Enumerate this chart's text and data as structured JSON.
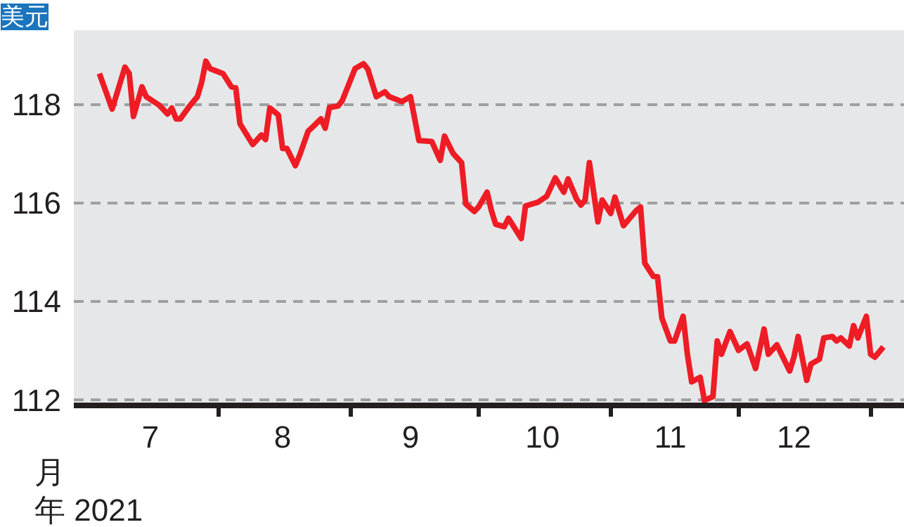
{
  "chart_data": {
    "type": "line",
    "ylabel": "美元",
    "annotations": [
      "月",
      "年 2021"
    ],
    "x": [
      "2021-07-04",
      "2021-07-07",
      "2021-07-10",
      "2021-07-11",
      "2021-07-12",
      "2021-07-14",
      "2021-07-15",
      "2021-07-18",
      "2021-07-20",
      "2021-07-21",
      "2021-07-22",
      "2021-07-23",
      "2021-07-25",
      "2021-07-27",
      "2021-07-28",
      "2021-07-29",
      "2021-07-30",
      "2021-08-02",
      "2021-08-04",
      "2021-08-05",
      "2021-08-06",
      "2021-08-09",
      "2021-08-11",
      "2021-08-12",
      "2021-08-13",
      "2021-08-15",
      "2021-08-16",
      "2021-08-17",
      "2021-08-19",
      "2021-08-20",
      "2021-08-22",
      "2021-08-23",
      "2021-08-25",
      "2021-08-26",
      "2021-08-27",
      "2021-08-29",
      "2021-08-30",
      "2021-09-02",
      "2021-09-04",
      "2021-09-05",
      "2021-09-07",
      "2021-09-09",
      "2021-09-10",
      "2021-09-13",
      "2021-09-15",
      "2021-09-17",
      "2021-09-20",
      "2021-09-22",
      "2021-09-23",
      "2021-09-25",
      "2021-09-27",
      "2021-09-28",
      "2021-09-30",
      "2021-10-01",
      "2021-10-03",
      "2021-10-04",
      "2021-10-05",
      "2021-10-07",
      "2021-10-08",
      "2021-10-11",
      "2021-10-12",
      "2021-10-15",
      "2021-10-17",
      "2021-10-19",
      "2021-10-21",
      "2021-10-22",
      "2021-10-24",
      "2021-10-25",
      "2021-10-26",
      "2021-10-27",
      "2021-10-29",
      "2021-10-30",
      "2021-11-01",
      "2021-11-02",
      "2021-11-04",
      "2021-11-07",
      "2021-11-08",
      "2021-11-09",
      "2021-11-11",
      "2021-11-12",
      "2021-11-13",
      "2021-11-15",
      "2021-11-16",
      "2021-11-18",
      "2021-11-19",
      "2021-11-20",
      "2021-11-22",
      "2021-11-23",
      "2021-11-25",
      "2021-11-26",
      "2021-11-27",
      "2021-11-29",
      "2021-12-01",
      "2021-12-03",
      "2021-12-05",
      "2021-12-07",
      "2021-12-08",
      "2021-12-10",
      "2021-12-13",
      "2021-12-14",
      "2021-12-15",
      "2021-12-17",
      "2021-12-18",
      "2021-12-20",
      "2021-12-21",
      "2021-12-23",
      "2021-12-24",
      "2021-12-25",
      "2021-12-27",
      "2021-12-28",
      "2021-12-29",
      "2021-12-31",
      "2022-01-01",
      "2022-01-02",
      "2022-01-04"
    ],
    "series": [
      {
        "color": "#ee1c25",
        "values": [
          118.62,
          117.9,
          118.75,
          118.62,
          117.75,
          118.35,
          118.15,
          117.98,
          117.8,
          117.92,
          117.7,
          117.7,
          117.94,
          118.15,
          118.44,
          118.87,
          118.72,
          118.62,
          118.35,
          118.33,
          117.6,
          117.18,
          117.37,
          117.28,
          117.92,
          117.78,
          117.1,
          117.1,
          116.75,
          116.96,
          117.45,
          117.53,
          117.7,
          117.51,
          117.93,
          117.96,
          118.07,
          118.72,
          118.82,
          118.71,
          118.15,
          118.25,
          118.15,
          118.05,
          118.15,
          117.26,
          117.24,
          116.86,
          117.35,
          117.0,
          116.81,
          115.97,
          115.82,
          115.91,
          116.21,
          115.84,
          115.56,
          115.51,
          115.68,
          115.27,
          115.93,
          116.01,
          116.13,
          116.5,
          116.21,
          116.48,
          116.07,
          115.95,
          116.05,
          116.81,
          115.61,
          116.05,
          115.78,
          116.11,
          115.53,
          115.84,
          115.91,
          114.77,
          114.5,
          114.49,
          113.66,
          113.19,
          113.19,
          113.69,
          112.92,
          112.36,
          112.45,
          111.98,
          112.06,
          113.19,
          112.92,
          113.38,
          113.0,
          113.13,
          112.63,
          113.43,
          112.92,
          113.11,
          112.58,
          112.86,
          113.28,
          112.39,
          112.72,
          112.82,
          113.25,
          113.28,
          113.19,
          113.25,
          113.09,
          113.5,
          113.25,
          113.69,
          112.92,
          112.86,
          113.07
        ]
      }
    ],
    "xlim": [
      "2021-06-28",
      "2022-01-09"
    ],
    "xticks": [
      {
        "value": "2021-08-01",
        "label": null
      },
      {
        "value": "2021-09-01",
        "label": null
      },
      {
        "value": "2021-10-01",
        "label": null
      },
      {
        "value": "2021-11-01",
        "label": null
      },
      {
        "value": "2021-12-01",
        "label": null
      },
      {
        "value": "2022-01-01",
        "label": null
      },
      {
        "value": "2021-07-16",
        "label": "7"
      },
      {
        "value": "2021-08-16",
        "label": "8"
      },
      {
        "value": "2021-09-15",
        "label": "9"
      },
      {
        "value": "2021-10-16",
        "label": "10"
      },
      {
        "value": "2021-11-15",
        "label": "11"
      },
      {
        "value": "2021-12-14",
        "label": "12"
      }
    ],
    "ylim": [
      111.88,
      119.5
    ],
    "yticks": [
      112,
      114,
      116,
      118
    ],
    "grid": "y",
    "line_style": "solid",
    "marker": "none"
  }
}
